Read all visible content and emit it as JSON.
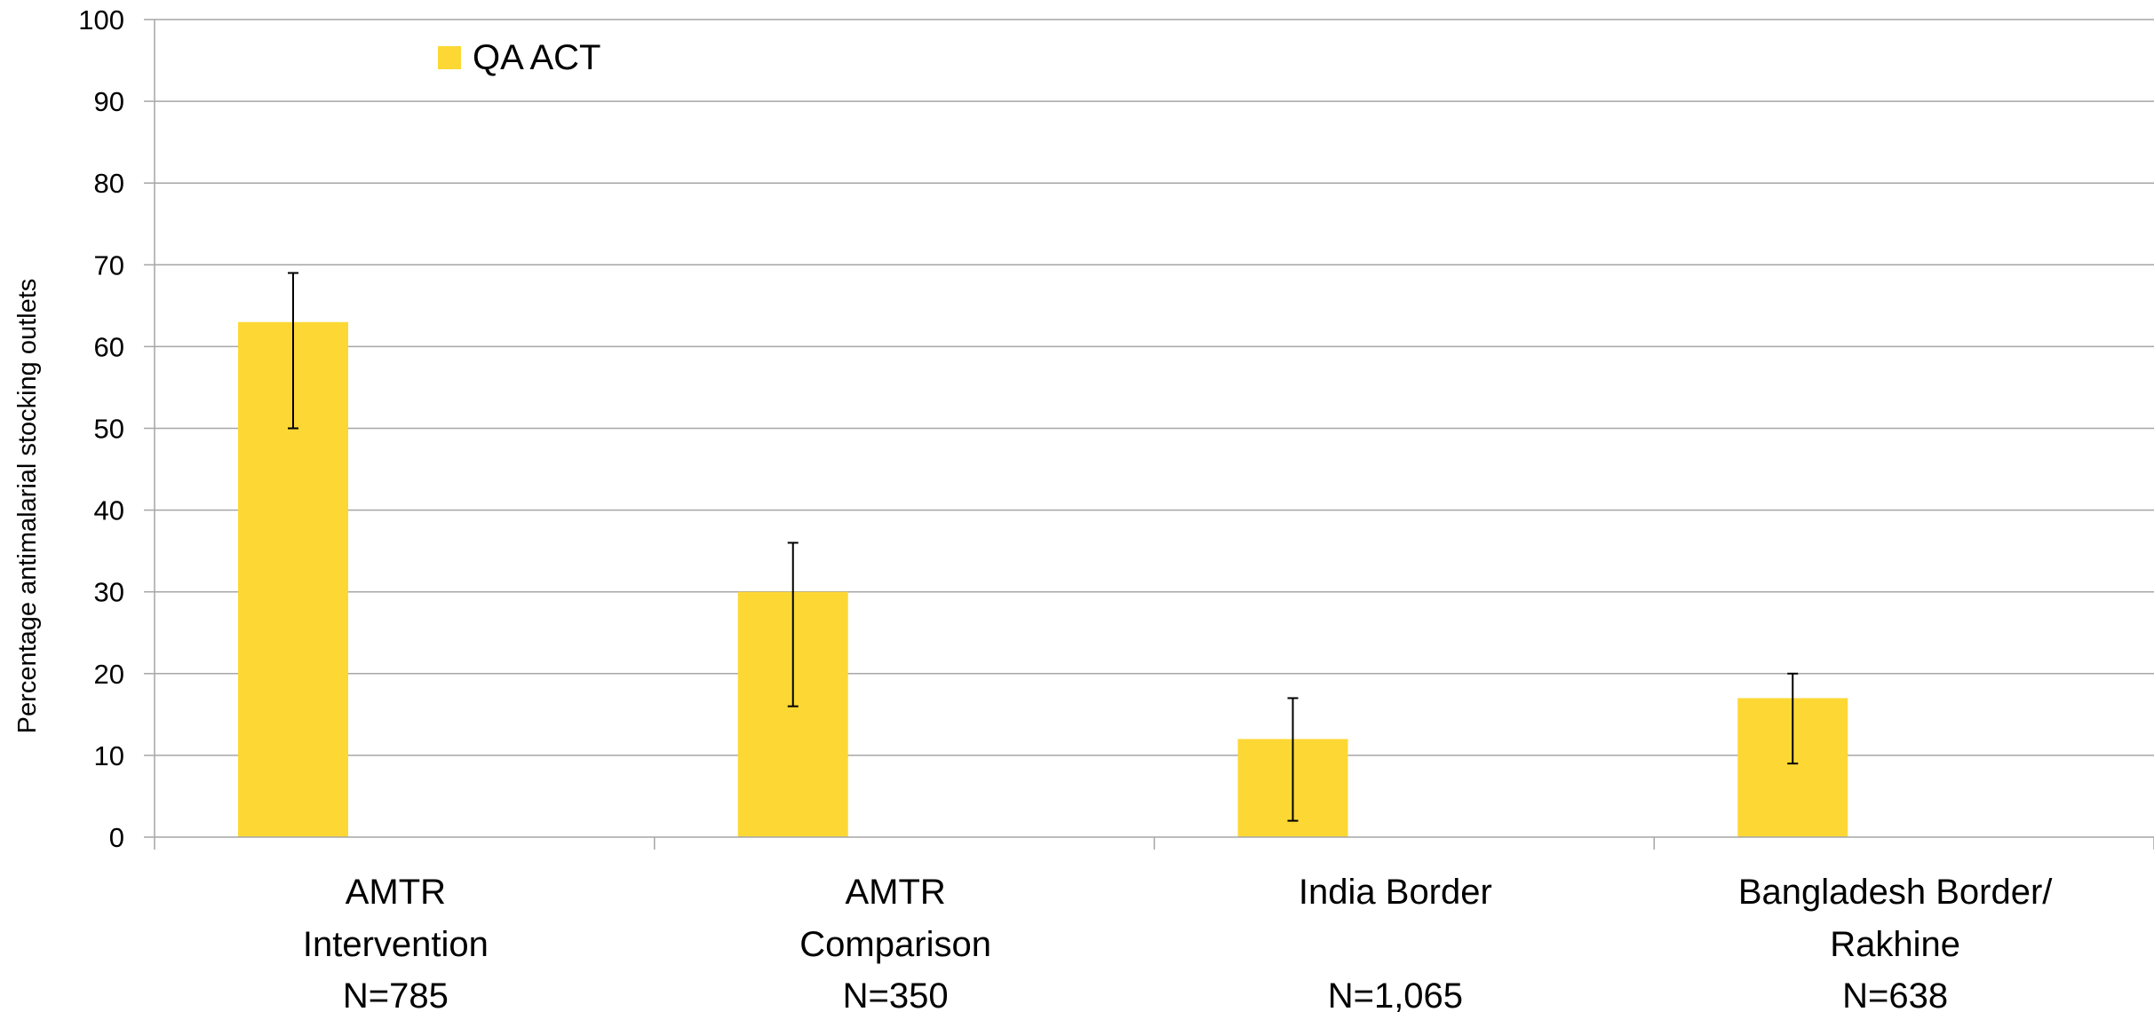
{
  "chart_data": {
    "type": "bar",
    "categories": [
      [
        "AMTR",
        "Intervention",
        "N=785"
      ],
      [
        "AMTR",
        "Comparison",
        "N=350"
      ],
      [
        "India Border",
        "",
        "N=1,065"
      ],
      [
        "Bangladesh Border/",
        "Rakhine",
        "N=638"
      ]
    ],
    "series": [
      {
        "name": "QA ACT",
        "color": "#FDD835",
        "values": [
          63,
          30,
          12,
          17
        ],
        "error_low": [
          50,
          16,
          2,
          9
        ],
        "error_high": [
          69,
          36,
          17,
          20
        ]
      }
    ],
    "xlabel": "",
    "ylabel": "Percentage antimalarial stocking outlets",
    "ylim": [
      0,
      100
    ],
    "yticks": [
      0,
      10,
      20,
      30,
      40,
      50,
      60,
      70,
      80,
      90,
      100
    ],
    "grid": true,
    "legend_position": "top-left"
  }
}
